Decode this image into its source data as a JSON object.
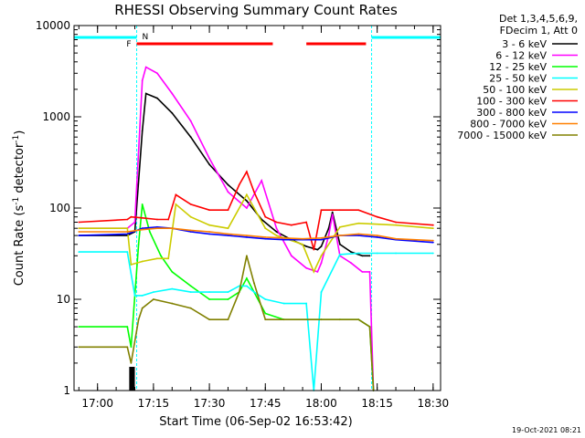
{
  "chart_data": {
    "type": "line",
    "title": "RHESSI Observing Summary Count Rates",
    "xlabel": "Start Time (06-Sep-02 16:53:42)",
    "ylabel_main": "Count Rate (s",
    "ylabel_sup1": "-1",
    "ylabel_mid": " detector",
    "ylabel_sup2": "-1",
    "ylabel_end": ")",
    "xscale": "linear",
    "yscale": "log",
    "xlim": [
      "16:53:42",
      "18:32:00"
    ],
    "ylim": [
      1,
      10000
    ],
    "x_ticks": [
      "17:00",
      "17:15",
      "17:30",
      "17:45",
      "18:00",
      "18:15",
      "18:30"
    ],
    "y_ticks": [
      {
        "value": 1,
        "label": "1"
      },
      {
        "value": 10,
        "label": "10"
      },
      {
        "value": 100,
        "label": "100"
      },
      {
        "value": 1000,
        "label": "1000"
      },
      {
        "value": 10000,
        "label": "10000"
      }
    ],
    "legend_header": [
      "Det 1,3,4,5,6,9,",
      "FDecim 1, Att 0"
    ],
    "legend_placement": "right",
    "annotations": {
      "flare_marker": "F",
      "night_marker": "N",
      "timestamp": "19-Oct-2021 08:21"
    },
    "night_periods": [
      [
        "16:53:42",
        "17:10:30"
      ],
      [
        "18:13:30",
        "18:32:00"
      ]
    ],
    "flare_bars": [
      [
        "17:10:30",
        "17:47:00"
      ],
      [
        "17:56:00",
        "18:12:00"
      ]
    ],
    "attenuator_bars": [
      [
        "17:08:30",
        "17:10:00"
      ]
    ],
    "series": [
      {
        "name": "3 - 6 keV",
        "color": "#000000",
        "x": [
          "16:55",
          "17:08",
          "17:10",
          "17:12",
          "17:13",
          "17:16",
          "17:20",
          "17:25",
          "17:30",
          "17:35",
          "17:40",
          "17:44",
          "17:48",
          "17:52",
          "17:56",
          "17:59",
          "18:00",
          "18:02",
          "18:03",
          "18:05",
          "18:08",
          "18:11",
          "18:13"
        ],
        "y": [
          50,
          50,
          55,
          700,
          1800,
          1600,
          1100,
          600,
          300,
          180,
          120,
          75,
          55,
          45,
          38,
          35,
          38,
          60,
          90,
          40,
          33,
          30,
          30
        ]
      },
      {
        "name": "6 - 12 keV",
        "color": "#ff00ff",
        "x": [
          "16:55",
          "17:08",
          "17:10",
          "17:12",
          "17:13",
          "17:16",
          "17:20",
          "17:25",
          "17:30",
          "17:35",
          "17:40",
          "17:44",
          "17:48",
          "17:52",
          "17:56",
          "17:59",
          "18:00",
          "18:02",
          "18:03",
          "18:05",
          "18:08",
          "18:11",
          "18:13",
          "18:14"
        ],
        "y": [
          60,
          60,
          70,
          2500,
          3500,
          3000,
          1800,
          900,
          350,
          150,
          100,
          200,
          60,
          30,
          22,
          20,
          25,
          50,
          85,
          30,
          25,
          20,
          20,
          1
        ]
      },
      {
        "name": "12 - 25 keV",
        "color": "#00ff00",
        "x": [
          "16:55",
          "17:08",
          "17:09",
          "17:11",
          "17:12",
          "17:14",
          "17:17",
          "17:20",
          "17:25",
          "17:30",
          "17:35",
          "17:38",
          "17:40",
          "17:42",
          "17:45",
          "17:50",
          "18:00",
          "18:05",
          "18:10",
          "18:13",
          "18:14"
        ],
        "y": [
          5,
          5,
          3,
          40,
          110,
          55,
          30,
          20,
          14,
          10,
          10,
          12,
          17,
          12,
          7,
          6,
          6,
          6,
          6,
          5,
          1
        ]
      },
      {
        "name": "25 - 50 keV",
        "color": "#00ffff",
        "x": [
          "16:55",
          "17:08",
          "17:10",
          "17:12",
          "17:15",
          "17:20",
          "17:25",
          "17:30",
          "17:35",
          "17:38",
          "17:40",
          "17:42",
          "17:45",
          "17:50",
          "17:56",
          "17:58",
          "18:00",
          "18:05",
          "18:10",
          "18:15",
          "18:20",
          "18:30"
        ],
        "y": [
          33,
          33,
          11,
          11,
          12,
          13,
          12,
          12,
          12,
          14,
          14,
          12,
          10,
          9,
          9,
          1,
          12,
          31,
          32,
          32,
          32,
          32
        ]
      },
      {
        "name": "50 - 100 keV",
        "color": "#cccc00",
        "x": [
          "16:55",
          "17:08",
          "17:09",
          "17:12",
          "17:16",
          "17:19",
          "17:21",
          "17:25",
          "17:30",
          "17:35",
          "17:40",
          "17:45",
          "17:48",
          "17:55",
          "17:58",
          "18:00",
          "18:05",
          "18:10",
          "18:20",
          "18:30"
        ],
        "y": [
          60,
          60,
          24,
          26,
          28,
          28,
          110,
          80,
          65,
          60,
          140,
          60,
          50,
          40,
          20,
          30,
          62,
          68,
          65,
          60
        ]
      },
      {
        "name": "100 - 300 keV",
        "color": "#ff0000",
        "x": [
          "16:55",
          "17:08",
          "17:09",
          "17:12",
          "17:16",
          "17:19",
          "17:21",
          "17:25",
          "17:30",
          "17:35",
          "17:38",
          "17:40",
          "17:42",
          "17:45",
          "17:48",
          "17:52",
          "17:56",
          "17:58",
          "18:00",
          "18:05",
          "18:10",
          "18:15",
          "18:20",
          "18:30"
        ],
        "y": [
          70,
          75,
          80,
          78,
          75,
          75,
          140,
          110,
          95,
          95,
          180,
          250,
          150,
          80,
          70,
          65,
          70,
          35,
          95,
          95,
          95,
          80,
          70,
          65
        ]
      },
      {
        "name": "300 - 800 keV",
        "color": "#0000ff",
        "x": [
          "16:55",
          "17:08",
          "17:12",
          "17:16",
          "17:20",
          "17:25",
          "17:30",
          "17:35",
          "17:40",
          "17:45",
          "17:50",
          "17:55",
          "18:00",
          "18:05",
          "18:10",
          "18:15",
          "18:20",
          "18:30"
        ],
        "y": [
          50,
          52,
          60,
          62,
          60,
          55,
          52,
          50,
          48,
          46,
          45,
          45,
          45,
          50,
          50,
          48,
          45,
          42
        ]
      },
      {
        "name": "800 - 7000 keV",
        "color": "#ff8000",
        "x": [
          "16:55",
          "17:08",
          "17:12",
          "17:16",
          "17:20",
          "17:25",
          "17:30",
          "17:35",
          "17:40",
          "17:45",
          "17:50",
          "17:55",
          "18:00",
          "18:05",
          "18:10",
          "18:15",
          "18:20",
          "18:30"
        ],
        "y": [
          55,
          55,
          58,
          60,
          60,
          57,
          55,
          52,
          50,
          48,
          47,
          46,
          47,
          50,
          52,
          50,
          46,
          44
        ]
      },
      {
        "name": "7000 - 15000 keV",
        "color": "#808000",
        "x": [
          "16:55",
          "17:08",
          "17:09",
          "17:11",
          "17:12",
          "17:15",
          "17:20",
          "17:25",
          "17:30",
          "17:35",
          "17:38",
          "17:40",
          "17:42",
          "17:45",
          "17:50",
          "18:00",
          "18:05",
          "18:10",
          "18:13",
          "18:14"
        ],
        "y": [
          3,
          3,
          2,
          6,
          8,
          10,
          9,
          8,
          6,
          6,
          12,
          30,
          15,
          6,
          6,
          6,
          6,
          6,
          5,
          1
        ]
      }
    ]
  }
}
